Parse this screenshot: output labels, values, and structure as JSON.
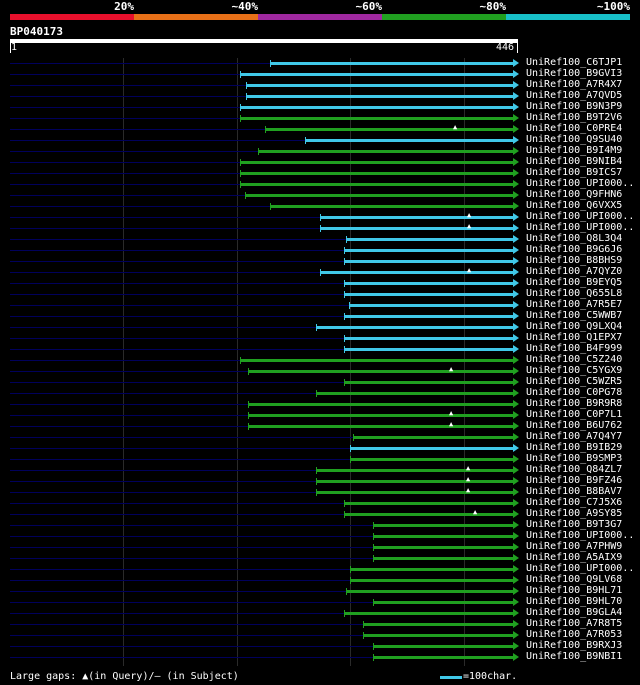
{
  "legend": {
    "labels": [
      "20%",
      "~40%",
      "~60%",
      "~80%",
      "~100%"
    ],
    "colors": [
      "#e8102c",
      "#e87018",
      "#a028a0",
      "#20a020",
      "#18c0c8"
    ]
  },
  "query": {
    "id": "BP040173",
    "start": "1",
    "end": "446",
    "length": 446
  },
  "colors": {
    "hit_high": "#40c8e8",
    "hit_mid": "#20a020",
    "baseline": "#00005c",
    "grid": "#2a2a2a"
  },
  "hits": [
    {
      "label": "UniRef100_C6TJP1",
      "start": 229,
      "color": "high",
      "mark": ""
    },
    {
      "label": "UniRef100_B9GVI3",
      "start": 203,
      "color": "high",
      "mark": ""
    },
    {
      "label": "UniRef100_A7R4X7",
      "start": 208,
      "color": "high",
      "mark": ""
    },
    {
      "label": "UniRef100_A7QVD5",
      "start": 208,
      "color": "high",
      "mark": ""
    },
    {
      "label": "UniRef100_B9N3P9",
      "start": 203,
      "color": "high",
      "mark": ""
    },
    {
      "label": "UniRef100_B9T2V6",
      "start": 203,
      "color": "mid",
      "mark": ""
    },
    {
      "label": "UniRef100_C0PRE4",
      "start": 225,
      "color": "mid",
      "mark": "▲"
    },
    {
      "label": "UniRef100_Q9SU40",
      "start": 260,
      "color": "high",
      "mark": ""
    },
    {
      "label": "UniRef100_B9I4M9",
      "start": 219,
      "color": "mid",
      "mark": ""
    },
    {
      "label": "UniRef100_B9NIB4",
      "start": 203,
      "color": "mid",
      "mark": ""
    },
    {
      "label": "UniRef100_B9ICS7",
      "start": 203,
      "color": "mid",
      "mark": ""
    },
    {
      "label": "UniRef100_UPI000..",
      "start": 203,
      "color": "mid",
      "mark": ""
    },
    {
      "label": "UniRef100_Q9FHN6",
      "start": 207,
      "color": "mid",
      "mark": ""
    },
    {
      "label": "UniRef100_Q6VXX5",
      "start": 229,
      "color": "mid",
      "mark": ""
    },
    {
      "label": "UniRef100_UPI000..",
      "start": 273,
      "color": "high",
      "mark": "▲"
    },
    {
      "label": "UniRef100_UPI000..",
      "start": 273,
      "color": "high",
      "mark": "▲"
    },
    {
      "label": "UniRef100_Q8L3Q4",
      "start": 296,
      "color": "high",
      "mark": ""
    },
    {
      "label": "UniRef100_B9G6J6",
      "start": 294,
      "color": "high",
      "mark": ""
    },
    {
      "label": "UniRef100_B8BHS9",
      "start": 294,
      "color": "high",
      "mark": ""
    },
    {
      "label": "UniRef100_A7QYZ0",
      "start": 273,
      "color": "high",
      "mark": "▲"
    },
    {
      "label": "UniRef100_B9EYQ5",
      "start": 294,
      "color": "high",
      "mark": ""
    },
    {
      "label": "UniRef100_Q655L8",
      "start": 294,
      "color": "high",
      "mark": ""
    },
    {
      "label": "UniRef100_A7R5E7",
      "start": 299,
      "color": "high",
      "mark": ""
    },
    {
      "label": "UniRef100_C5WWB7",
      "start": 294,
      "color": "high",
      "mark": ""
    },
    {
      "label": "UniRef100_Q9LXQ4",
      "start": 270,
      "color": "high",
      "mark": ""
    },
    {
      "label": "UniRef100_Q1EPX7",
      "start": 294,
      "color": "high",
      "mark": ""
    },
    {
      "label": "UniRef100_B4F999",
      "start": 294,
      "color": "high",
      "mark": ""
    },
    {
      "label": "UniRef100_C5Z240",
      "start": 203,
      "color": "mid",
      "mark": ""
    },
    {
      "label": "UniRef100_C5YGX9",
      "start": 210,
      "color": "mid",
      "mark": "▲"
    },
    {
      "label": "UniRef100_C5WZR5",
      "start": 294,
      "color": "mid",
      "mark": ""
    },
    {
      "label": "UniRef100_C0PG78",
      "start": 270,
      "color": "mid",
      "mark": ""
    },
    {
      "label": "UniRef100_B9R9R8",
      "start": 210,
      "color": "mid",
      "mark": ""
    },
    {
      "label": "UniRef100_C0P7L1",
      "start": 210,
      "color": "mid",
      "mark": "▲"
    },
    {
      "label": "UniRef100_B6U762",
      "start": 210,
      "color": "mid",
      "mark": "▲"
    },
    {
      "label": "UniRef100_A7Q4Y7",
      "start": 302,
      "color": "mid",
      "mark": ""
    },
    {
      "label": "UniRef100_B9IB29",
      "start": 300,
      "color": "high",
      "mark": ""
    },
    {
      "label": "UniRef100_B9SMP3",
      "start": 300,
      "color": "mid",
      "mark": ""
    },
    {
      "label": "UniRef100_Q84ZL7",
      "start": 270,
      "color": "mid",
      "mark": "▲"
    },
    {
      "label": "UniRef100_B9FZ46",
      "start": 270,
      "color": "mid",
      "mark": "▲"
    },
    {
      "label": "UniRef100_B8BAV7",
      "start": 270,
      "color": "mid",
      "mark": "▲"
    },
    {
      "label": "UniRef100_C7J5X6",
      "start": 294,
      "color": "mid",
      "mark": ""
    },
    {
      "label": "UniRef100_A9SY85",
      "start": 294,
      "color": "mid",
      "mark": "▲"
    },
    {
      "label": "UniRef100_B9T3G7",
      "start": 320,
      "color": "mid",
      "mark": ""
    },
    {
      "label": "UniRef100_UPI000..",
      "start": 320,
      "color": "mid",
      "mark": ""
    },
    {
      "label": "UniRef100_A7PHW9",
      "start": 320,
      "color": "mid",
      "mark": ""
    },
    {
      "label": "UniRef100_A5AIX9",
      "start": 320,
      "color": "mid",
      "mark": ""
    },
    {
      "label": "UniRef100_UPI000..",
      "start": 300,
      "color": "mid",
      "mark": ""
    },
    {
      "label": "UniRef100_Q9LV68",
      "start": 300,
      "color": "mid",
      "mark": ""
    },
    {
      "label": "UniRef100_B9HL71",
      "start": 296,
      "color": "mid",
      "mark": ""
    },
    {
      "label": "UniRef100_B9HL70",
      "start": 320,
      "color": "mid",
      "mark": ""
    },
    {
      "label": "UniRef100_B9GLA4",
      "start": 294,
      "color": "mid",
      "mark": ""
    },
    {
      "label": "UniRef100_A7R8T5",
      "start": 311,
      "color": "mid",
      "mark": ""
    },
    {
      "label": "UniRef100_A7R053",
      "start": 311,
      "color": "mid",
      "mark": ""
    },
    {
      "label": "UniRef100_B9RXJ3",
      "start": 320,
      "color": "mid",
      "mark": ""
    },
    {
      "label": "UniRef100_B9NBI1",
      "start": 320,
      "color": "mid",
      "mark": ""
    }
  ],
  "footer": {
    "gaps_text": "Large gaps: ▲(in Query)/– (in Subject)",
    "scale_text": "=100char."
  }
}
